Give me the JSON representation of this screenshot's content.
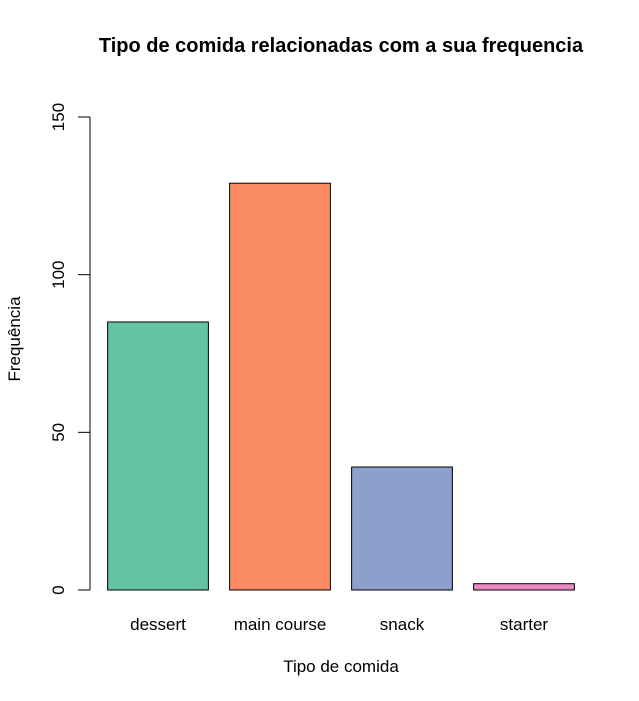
{
  "chart_data": {
    "type": "bar",
    "title": "Tipo de comida relacionadas com a sua frequencia",
    "xlabel": "Tipo de comida",
    "ylabel": "Frequência",
    "categories": [
      "dessert",
      "main course",
      "snack",
      "starter"
    ],
    "values": [
      85,
      129,
      39,
      2
    ],
    "colors": [
      "#66c2a5",
      "#fc8d62",
      "#8da0cb",
      "#e78ac3"
    ],
    "ylim": [
      0,
      150
    ],
    "yticks": [
      0,
      50,
      100,
      150
    ],
    "grid": false,
    "legend": "none"
  }
}
